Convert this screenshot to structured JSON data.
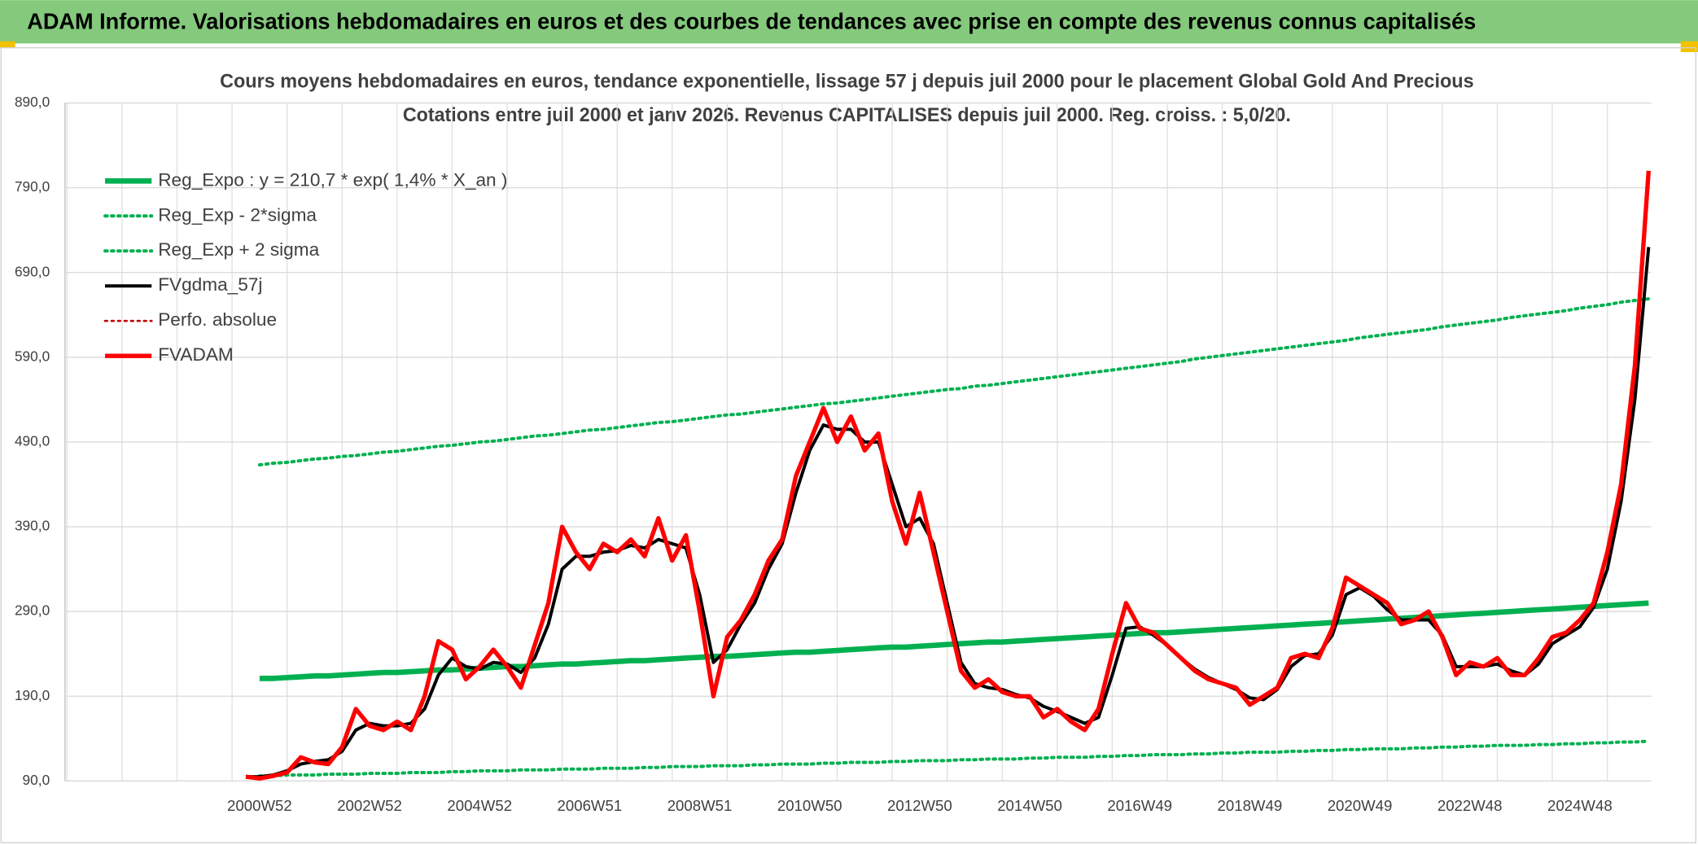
{
  "header": {
    "title": "ADAM Informe. Valorisations hebdomadaires en euros et des courbes de tendances avec prise en compte des revenus connus capitalisés"
  },
  "chart_data": {
    "type": "line",
    "title": "Cours moyens hebdomadaires en euros, tendance exponentielle, lissage 57 j depuis juil 2000 pour le placement Global Gold And Precious",
    "subtitle": "Cotations entre juil 2000 et janv 2026. Revenus CAPITALISES depuis juil 2000. Reg. croiss. : 5,0/20.",
    "categories": [
      null,
      "2000W52",
      null,
      null,
      null,
      null,
      null,
      null,
      null,
      "2002W52",
      null,
      null,
      null,
      null,
      null,
      null,
      null,
      "2004W52",
      null,
      null,
      null,
      null,
      null,
      null,
      null,
      "2006W51",
      null,
      null,
      null,
      null,
      null,
      null,
      null,
      "2008W51",
      null,
      null,
      null,
      null,
      null,
      null,
      null,
      "2010W50",
      null,
      null,
      null,
      null,
      null,
      null,
      null,
      "2012W50",
      null,
      null,
      null,
      null,
      null,
      null,
      null,
      "2014W50",
      null,
      null,
      null,
      null,
      null,
      null,
      null,
      "2016W49",
      null,
      null,
      null,
      null,
      null,
      null,
      null,
      "2018W49",
      null,
      null,
      null,
      null,
      null,
      null,
      null,
      "2020W49",
      null,
      null,
      null,
      null,
      null,
      null,
      null,
      "2022W48",
      null,
      null,
      null,
      null,
      null,
      null,
      null,
      "2024W48",
      null,
      null,
      null,
      null,
      null
    ],
    "ylim": [
      90,
      890
    ],
    "yticks": [
      {
        "value": 90,
        "label": "90,0"
      },
      {
        "value": 190,
        "label": "190,0"
      },
      {
        "value": 290,
        "label": "290,0"
      },
      {
        "value": 390,
        "label": "390,0"
      },
      {
        "value": 490,
        "label": "490,0"
      },
      {
        "value": 590,
        "label": "590,0"
      },
      {
        "value": 690,
        "label": "690,0"
      },
      {
        "value": 790,
        "label": "790,0"
      },
      {
        "value": 890,
        "label": "890,0"
      }
    ],
    "grid": true,
    "legend": "top-left",
    "series": [
      {
        "name": "Reg_Expo : y = 210,7 * exp( 1,4% *  X_an )",
        "color": "#00b050",
        "line_style": "solid",
        "values": [
          null,
          211,
          211,
          212,
          213,
          214,
          214,
          215,
          216,
          217,
          218,
          218,
          219,
          220,
          221,
          221,
          222,
          223,
          224,
          225,
          225,
          226,
          227,
          228,
          228,
          229,
          230,
          231,
          232,
          232,
          233,
          234,
          235,
          236,
          237,
          237,
          238,
          239,
          240,
          241,
          242,
          242,
          243,
          244,
          245,
          246,
          247,
          248,
          248,
          249,
          250,
          251,
          252,
          253,
          254,
          254,
          255,
          256,
          257,
          258,
          259,
          260,
          261,
          262,
          263,
          264,
          265,
          265,
          266,
          267,
          268,
          269,
          270,
          271,
          272,
          273,
          274,
          275,
          276,
          277,
          278,
          279,
          280,
          281,
          282,
          283,
          284,
          285,
          286,
          287,
          288,
          289,
          290,
          291,
          292,
          293,
          294,
          295,
          296,
          297,
          298,
          299,
          300
        ]
      },
      {
        "name": "Reg_Exp - 2*sigma",
        "color": "#00b050",
        "line_style": "dotted",
        "values": [
          null,
          96,
          96,
          97,
          97,
          97,
          98,
          98,
          98,
          99,
          99,
          99,
          100,
          100,
          100,
          101,
          101,
          102,
          102,
          102,
          103,
          103,
          103,
          104,
          104,
          104,
          105,
          105,
          105,
          106,
          106,
          107,
          107,
          107,
          108,
          108,
          108,
          109,
          109,
          110,
          110,
          110,
          111,
          111,
          112,
          112,
          112,
          113,
          113,
          114,
          114,
          114,
          115,
          115,
          116,
          116,
          116,
          117,
          117,
          118,
          118,
          118,
          119,
          119,
          120,
          120,
          121,
          121,
          121,
          122,
          122,
          123,
          123,
          124,
          124,
          124,
          125,
          125,
          126,
          126,
          127,
          127,
          128,
          128,
          128,
          129,
          129,
          130,
          130,
          131,
          131,
          132,
          132,
          132,
          133,
          133,
          134,
          134,
          135,
          135,
          136,
          136,
          137
        ]
      },
      {
        "name": "Reg_Exp + 2 sigma",
        "color": "#00b050",
        "line_style": "dotted",
        "values": [
          null,
          463,
          465,
          466,
          468,
          470,
          471,
          473,
          474,
          476,
          478,
          479,
          481,
          483,
          485,
          486,
          488,
          490,
          491,
          493,
          495,
          497,
          498,
          500,
          502,
          504,
          505,
          507,
          509,
          511,
          513,
          514,
          516,
          518,
          520,
          522,
          523,
          525,
          527,
          529,
          531,
          533,
          535,
          536,
          538,
          540,
          542,
          544,
          546,
          548,
          550,
          552,
          553,
          556,
          557,
          559,
          561,
          563,
          565,
          567,
          569,
          571,
          573,
          575,
          577,
          579,
          581,
          583,
          585,
          588,
          590,
          592,
          594,
          596,
          598,
          600,
          602,
          604,
          606,
          608,
          610,
          613,
          615,
          617,
          619,
          621,
          623,
          626,
          628,
          630,
          632,
          634,
          637,
          639,
          641,
          643,
          645,
          648,
          650,
          652,
          655,
          657,
          659
        ]
      },
      {
        "name": "FVgdma_57j",
        "color": "#000000",
        "line_style": "solid",
        "values": [
          95,
          95,
          97,
          102,
          110,
          113,
          115,
          125,
          150,
          158,
          155,
          155,
          158,
          175,
          215,
          235,
          225,
          222,
          230,
          228,
          218,
          235,
          275,
          340,
          355,
          355,
          360,
          362,
          368,
          365,
          375,
          370,
          365,
          310,
          230,
          245,
          275,
          300,
          340,
          370,
          430,
          480,
          510,
          505,
          505,
          490,
          490,
          440,
          390,
          400,
          370,
          300,
          230,
          205,
          200,
          198,
          192,
          188,
          178,
          172,
          165,
          158,
          165,
          215,
          270,
          272,
          262,
          250,
          235,
          222,
          212,
          205,
          198,
          188,
          186,
          198,
          225,
          238,
          240,
          262,
          310,
          318,
          308,
          292,
          280,
          280,
          280,
          262,
          225,
          225,
          225,
          228,
          220,
          215,
          228,
          252,
          262,
          272,
          295,
          340,
          420,
          540,
          720
        ]
      },
      {
        "name": "Perfo. absolue",
        "color": "#c00000",
        "line_style": "dotted",
        "values": [
          null,
          null,
          null,
          null,
          null,
          null,
          null,
          null,
          null,
          null,
          null,
          null,
          null,
          null,
          null,
          null,
          null,
          null,
          null,
          null,
          null,
          null,
          null,
          null,
          null,
          null,
          null,
          null,
          null,
          null,
          null,
          null,
          null,
          null,
          null,
          null,
          null,
          null,
          null,
          null,
          null,
          null,
          null,
          null,
          null,
          null,
          null,
          null,
          null,
          null,
          null,
          null,
          null,
          null,
          null,
          null,
          null,
          null,
          null,
          null,
          null,
          null,
          null,
          null,
          null,
          null,
          null,
          null,
          null,
          null,
          null,
          null,
          null,
          null,
          null,
          null,
          null,
          null,
          null,
          null,
          null,
          null,
          null,
          null,
          null,
          null,
          null,
          null,
          null,
          null,
          null,
          null,
          null,
          null,
          null,
          null,
          null,
          null,
          null,
          null,
          null,
          null,
          null
        ]
      },
      {
        "name": "FVADAM",
        "color": "#ff0000",
        "line_style": "solid",
        "values": [
          95,
          93,
          96,
          100,
          118,
          112,
          110,
          130,
          175,
          155,
          150,
          160,
          150,
          190,
          255,
          245,
          210,
          225,
          245,
          225,
          200,
          250,
          300,
          390,
          360,
          340,
          370,
          360,
          375,
          355,
          400,
          350,
          380,
          290,
          190,
          260,
          280,
          310,
          350,
          375,
          450,
          490,
          530,
          490,
          520,
          480,
          500,
          420,
          370,
          430,
          360,
          290,
          220,
          200,
          210,
          195,
          190,
          190,
          165,
          175,
          160,
          150,
          175,
          240,
          300,
          270,
          265,
          250,
          235,
          220,
          210,
          205,
          200,
          180,
          190,
          200,
          235,
          240,
          235,
          270,
          330,
          320,
          310,
          300,
          275,
          280,
          290,
          260,
          215,
          230,
          225,
          235,
          215,
          215,
          235,
          260,
          265,
          280,
          300,
          360,
          440,
          580,
          810
        ]
      }
    ]
  }
}
